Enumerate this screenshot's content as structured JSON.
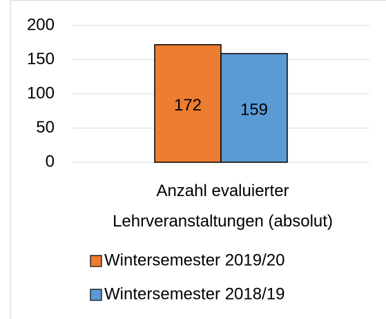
{
  "chart_data": {
    "type": "bar",
    "categories": [
      "Anzahl evaluierter Lehrveranstaltungen (absolut)"
    ],
    "series": [
      {
        "name": "Wintersemester 2019/20",
        "color": "#ed7d31",
        "values": [
          172
        ]
      },
      {
        "name": "Wintersemester 2018/19",
        "color": "#5b9bd5",
        "values": [
          159
        ]
      }
    ],
    "ylim": [
      0,
      200
    ],
    "yticks": [
      0,
      50,
      100,
      150,
      200
    ],
    "grid": true,
    "legend": "bottom"
  }
}
